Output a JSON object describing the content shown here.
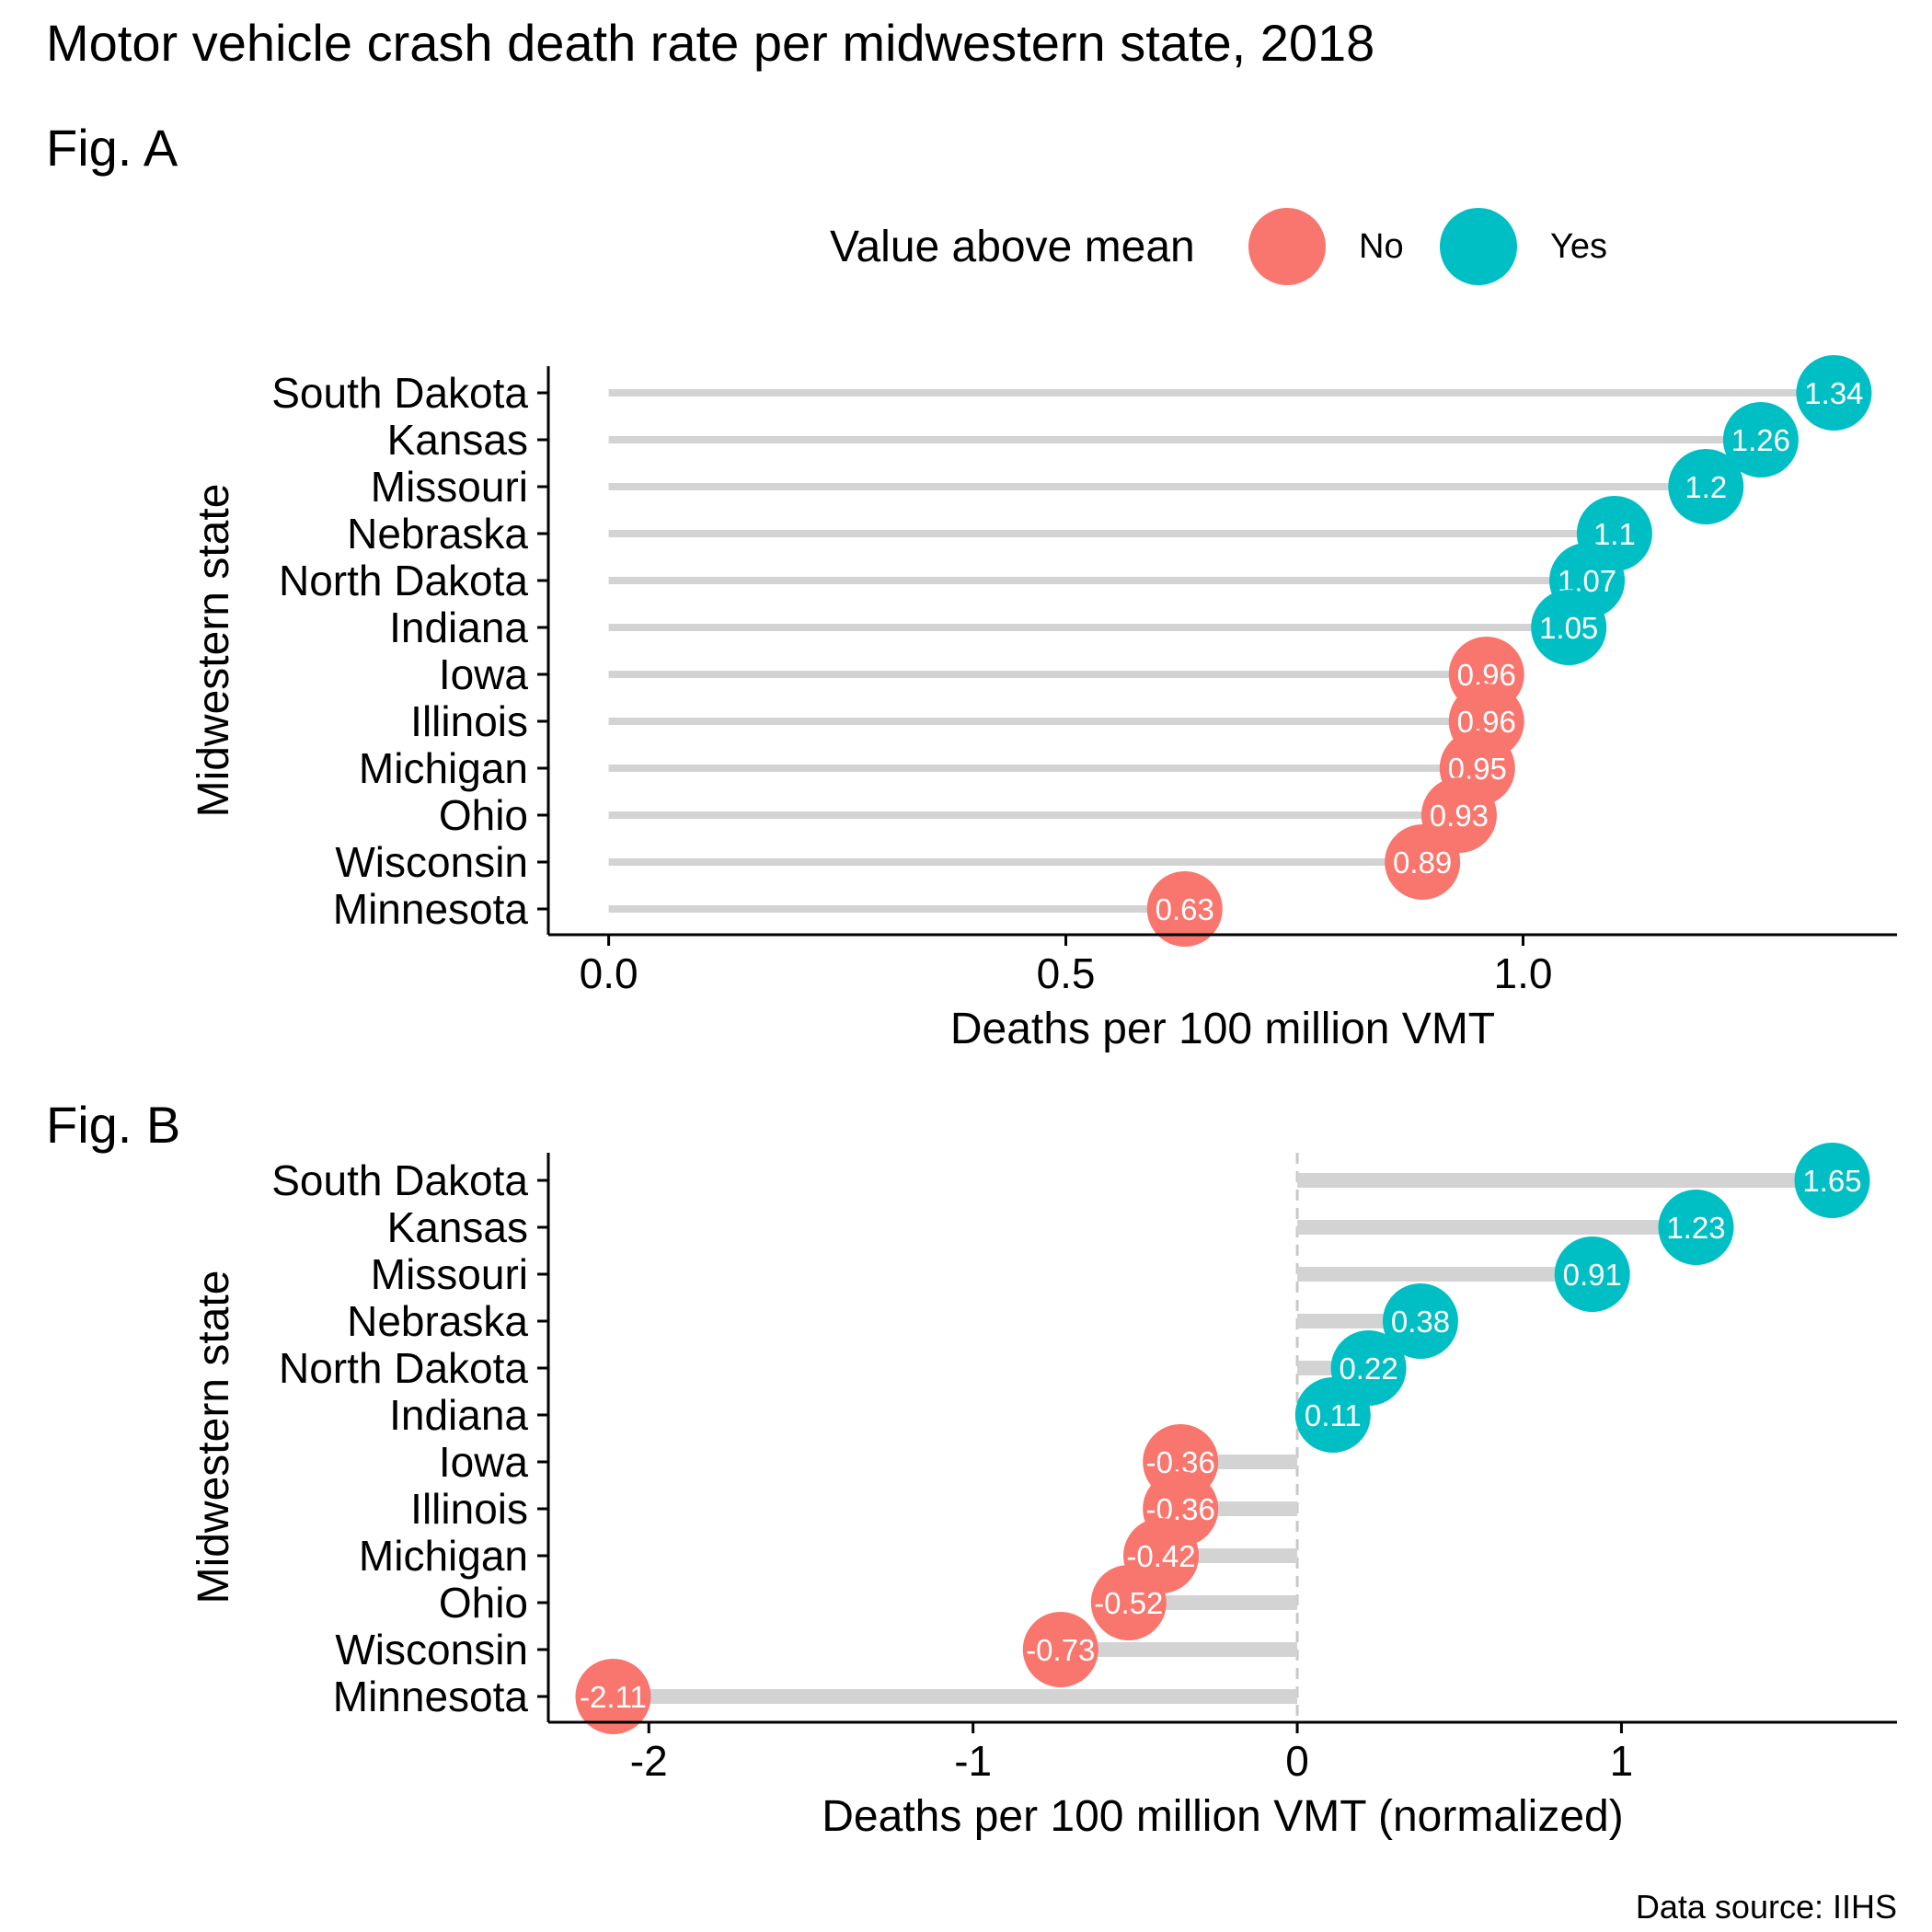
{
  "title": "Motor vehicle crash death rate per midwestern state, 2018",
  "caption": "Data source: IIHS",
  "colors": {
    "no": "#F8766D",
    "yes": "#00BFC4",
    "segment": "#D3D3D3",
    "axis": "#000000",
    "label_text": "#FFFFFF"
  },
  "legend": {
    "title": "Value above mean",
    "items": [
      {
        "label": "No",
        "color": "#F8766D"
      },
      {
        "label": "Yes",
        "color": "#00BFC4"
      }
    ]
  },
  "chart_data": [
    {
      "type": "lollipop",
      "panel_label": "Fig. A",
      "xlabel": "Deaths per 100 million VMT",
      "ylabel": "Midwestern state",
      "xlim": [
        -0.066,
        1.409
      ],
      "xticks": [
        0.0,
        0.5,
        1.0
      ],
      "xtick_labels": [
        "0.0",
        "0.5",
        "1.0"
      ],
      "segment_start": 0,
      "categories": [
        "South Dakota",
        "Kansas",
        "Missouri",
        "Nebraska",
        "North Dakota",
        "Indiana",
        "Iowa",
        "Illinois",
        "Michigan",
        "Ohio",
        "Wisconsin",
        "Minnesota"
      ],
      "values": [
        1.34,
        1.26,
        1.2,
        1.1,
        1.07,
        1.05,
        0.96,
        0.96,
        0.95,
        0.93,
        0.89,
        0.63
      ],
      "labels": [
        "1.34",
        "1.26",
        "1.2",
        "1.1",
        "1.07",
        "1.05",
        "0.96",
        "0.96",
        "0.95",
        "0.93",
        "0.89",
        "0.63"
      ],
      "above_mean": [
        "Yes",
        "Yes",
        "Yes",
        "Yes",
        "Yes",
        "Yes",
        "No",
        "No",
        "No",
        "No",
        "No",
        "No"
      ],
      "legend_position": "top"
    },
    {
      "type": "lollipop",
      "panel_label": "Fig. B",
      "xlabel": "Deaths per 100 million VMT (normalized)",
      "ylabel": "Midwestern state",
      "xlim": [
        -2.31,
        1.85
      ],
      "xticks": [
        -2,
        -1,
        0,
        1
      ],
      "xtick_labels": [
        "-2",
        "-1",
        "0",
        "1"
      ],
      "segment_start": 0,
      "reference_line": 0,
      "categories": [
        "South Dakota",
        "Kansas",
        "Missouri",
        "Nebraska",
        "North Dakota",
        "Indiana",
        "Iowa",
        "Illinois",
        "Michigan",
        "Ohio",
        "Wisconsin",
        "Minnesota"
      ],
      "values": [
        1.65,
        1.23,
        0.91,
        0.38,
        0.22,
        0.11,
        -0.36,
        -0.36,
        -0.42,
        -0.52,
        -0.73,
        -2.11
      ],
      "labels": [
        "1.65",
        "1.23",
        "0.91",
        "0.38",
        "0.22",
        "0.11",
        "-0.36",
        "-0.36",
        "-0.42",
        "-0.52",
        "-0.73",
        "-2.11"
      ],
      "above_mean": [
        "Yes",
        "Yes",
        "Yes",
        "Yes",
        "Yes",
        "Yes",
        "No",
        "No",
        "No",
        "No",
        "No",
        "No"
      ],
      "legend_position": "none"
    }
  ]
}
